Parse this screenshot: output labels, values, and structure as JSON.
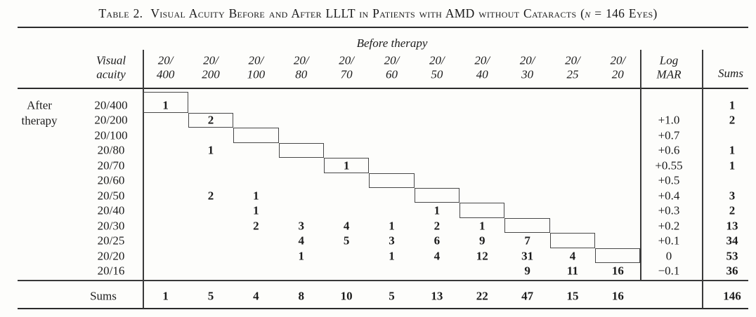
{
  "title": {
    "label": "Table 2.",
    "main": "Visual Acuity Before and After LLLT in Patients with AMD without Cataracts (",
    "n": "n",
    "tail": " = 146 Eyes)"
  },
  "table": {
    "group_header": "Before therapy",
    "corner_header_lines": [
      "Visual",
      "acuity"
    ],
    "row_group_label_lines": [
      "After",
      "therapy"
    ],
    "logmar_header_lines": [
      "Log",
      "MAR"
    ],
    "sums_header": "Sums",
    "col_headers": [
      [
        "20/",
        "400"
      ],
      [
        "20/",
        "200"
      ],
      [
        "20/",
        "100"
      ],
      [
        "20/",
        "80"
      ],
      [
        "20/",
        "70"
      ],
      [
        "20/",
        "60"
      ],
      [
        "20/",
        "50"
      ],
      [
        "20/",
        "40"
      ],
      [
        "20/",
        "30"
      ],
      [
        "20/",
        "25"
      ],
      [
        "20/",
        "20"
      ]
    ],
    "rows": [
      {
        "label": "20/400",
        "cells": [
          "1",
          "",
          "",
          "",
          "",
          "",
          "",
          "",
          "",
          "",
          ""
        ],
        "logmar": "",
        "sum": "1"
      },
      {
        "label": "20/200",
        "cells": [
          "",
          "2",
          "",
          "",
          "",
          "",
          "",
          "",
          "",
          "",
          ""
        ],
        "logmar": "+1.0",
        "sum": "2"
      },
      {
        "label": "20/100",
        "cells": [
          "",
          "",
          "",
          "",
          "",
          "",
          "",
          "",
          "",
          "",
          ""
        ],
        "logmar": "+0.7",
        "sum": ""
      },
      {
        "label": "20/80",
        "cells": [
          "",
          "1",
          "",
          "",
          "",
          "",
          "",
          "",
          "",
          "",
          ""
        ],
        "logmar": "+0.6",
        "sum": "1"
      },
      {
        "label": "20/70",
        "cells": [
          "",
          "",
          "",
          "",
          "1",
          "",
          "",
          "",
          "",
          "",
          ""
        ],
        "logmar": "+0.55",
        "sum": "1"
      },
      {
        "label": "20/60",
        "cells": [
          "",
          "",
          "",
          "",
          "",
          "",
          "",
          "",
          "",
          "",
          ""
        ],
        "logmar": "+0.5",
        "sum": ""
      },
      {
        "label": "20/50",
        "cells": [
          "",
          "2",
          "1",
          "",
          "",
          "",
          "",
          "",
          "",
          "",
          ""
        ],
        "logmar": "+0.4",
        "sum": "3"
      },
      {
        "label": "20/40",
        "cells": [
          "",
          "",
          "1",
          "",
          "",
          "",
          "1",
          "",
          "",
          "",
          ""
        ],
        "logmar": "+0.3",
        "sum": "2"
      },
      {
        "label": "20/30",
        "cells": [
          "",
          "",
          "2",
          "3",
          "4",
          "1",
          "2",
          "1",
          "",
          "",
          ""
        ],
        "logmar": "+0.2",
        "sum": "13"
      },
      {
        "label": "20/25",
        "cells": [
          "",
          "",
          "",
          "4",
          "5",
          "3",
          "6",
          "9",
          "7",
          "",
          ""
        ],
        "logmar": "+0.1",
        "sum": "34"
      },
      {
        "label": "20/20",
        "cells": [
          "",
          "",
          "",
          "1",
          "",
          "1",
          "4",
          "12",
          "31",
          "4",
          ""
        ],
        "logmar": "0",
        "sum": "53"
      },
      {
        "label": "20/16",
        "cells": [
          "",
          "",
          "",
          "",
          "",
          "",
          "",
          "",
          "9",
          "11",
          "16"
        ],
        "logmar": "−0.1",
        "sum": "36"
      }
    ],
    "diagonal_boxes_rows": [
      0,
      1,
      2,
      3,
      4,
      5,
      6,
      7,
      8,
      9,
      10
    ],
    "sums_row": {
      "label": "Sums",
      "cells": [
        "1",
        "5",
        "4",
        "8",
        "10",
        "5",
        "13",
        "22",
        "47",
        "15",
        "16"
      ],
      "total": "146"
    }
  }
}
